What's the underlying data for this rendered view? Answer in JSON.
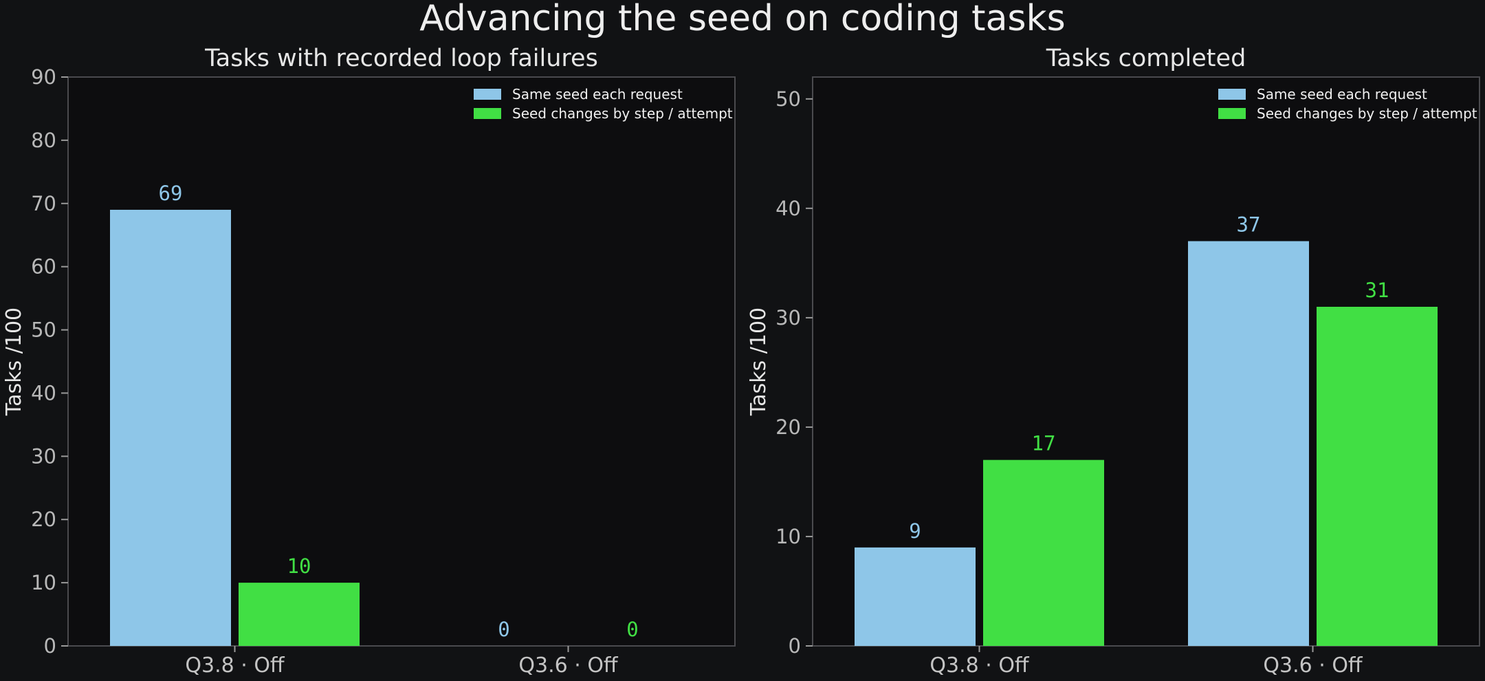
{
  "title": "Advancing the seed on coding tasks",
  "colors": {
    "background": "#111214",
    "plot_background": "#0d0d0f",
    "axis": "#4a4a4e",
    "same_seed": "#8ec6e8",
    "seed_changes": "#41df44"
  },
  "chart_data": [
    {
      "type": "bar",
      "title": "Tasks with recorded loop failures",
      "ylabel": "Tasks /100",
      "xlabel": "",
      "categories": [
        "Q3.8 · Off",
        "Q3.6 · Off"
      ],
      "ylim": [
        0,
        90
      ],
      "yticks": [
        0,
        10,
        20,
        30,
        40,
        50,
        60,
        70,
        80,
        90
      ],
      "legend": "top-right",
      "grid": false,
      "series": [
        {
          "name": "Same seed each request",
          "values": [
            69,
            0
          ]
        },
        {
          "name": "Seed changes by step / attempt",
          "values": [
            10,
            0
          ]
        }
      ]
    },
    {
      "type": "bar",
      "title": "Tasks completed",
      "ylabel": "Tasks /100",
      "xlabel": "",
      "categories": [
        "Q3.8 · Off",
        "Q3.6 · Off"
      ],
      "ylim": [
        0,
        52
      ],
      "yticks": [
        0,
        10,
        20,
        30,
        40,
        50
      ],
      "legend": "top-right",
      "grid": false,
      "series": [
        {
          "name": "Same seed each request",
          "values": [
            9,
            37
          ]
        },
        {
          "name": "Seed changes by step / attempt",
          "values": [
            17,
            31
          ]
        }
      ]
    }
  ]
}
